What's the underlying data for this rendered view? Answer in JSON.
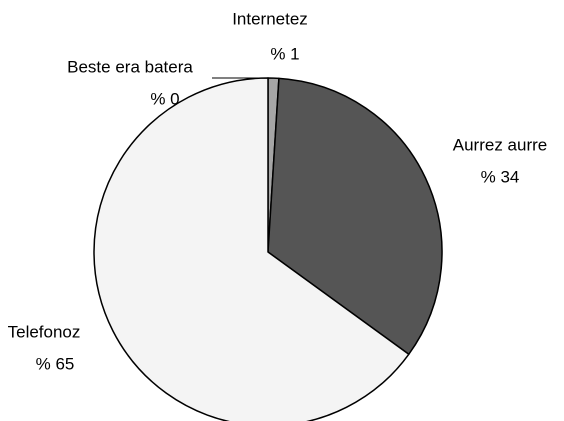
{
  "chart_data": {
    "type": "pie",
    "categories": [
      "Beste era batera",
      "Internetez",
      "Aurrez aurre",
      "Telefonoz"
    ],
    "values": [
      0,
      1,
      34,
      65
    ],
    "value_labels": [
      "% 0",
      "% 1",
      "% 34",
      "% 65"
    ],
    "colors": [
      "#ffffff",
      "#a6a6a6",
      "#555555",
      "#f4f4f4"
    ]
  }
}
